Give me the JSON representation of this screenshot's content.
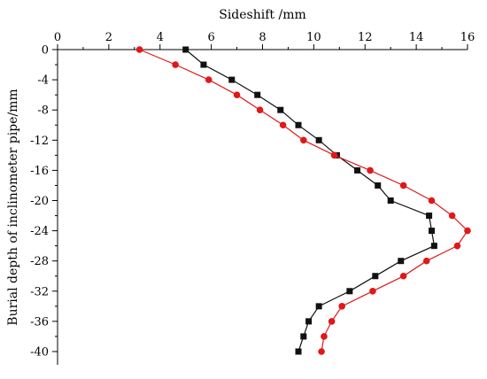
{
  "chart_data": {
    "type": "line",
    "xlabel": "Sideshift /mm",
    "ylabel": "Burial depth of inclinometer pipe/mm",
    "xlim": [
      0,
      16
    ],
    "ylim": [
      -41,
      0
    ],
    "x_axis_position": "top",
    "xticks": [
      0,
      2,
      4,
      6,
      8,
      10,
      12,
      14,
      16
    ],
    "yticks": [
      0,
      -4,
      -8,
      -12,
      -16,
      -20,
      -24,
      -28,
      -32,
      -36,
      -40
    ],
    "grid": false,
    "legend": "none",
    "series": [
      {
        "color": "#111111",
        "marker": "square",
        "points": [
          {
            "x": 5.0,
            "y": 0
          },
          {
            "x": 5.7,
            "y": -2
          },
          {
            "x": 6.8,
            "y": -4
          },
          {
            "x": 7.8,
            "y": -6
          },
          {
            "x": 8.7,
            "y": -8
          },
          {
            "x": 9.4,
            "y": -10
          },
          {
            "x": 10.2,
            "y": -12
          },
          {
            "x": 10.9,
            "y": -14
          },
          {
            "x": 11.7,
            "y": -16
          },
          {
            "x": 12.5,
            "y": -18
          },
          {
            "x": 13.0,
            "y": -20
          },
          {
            "x": 14.5,
            "y": -22
          },
          {
            "x": 14.6,
            "y": -24
          },
          {
            "x": 14.7,
            "y": -26
          },
          {
            "x": 13.4,
            "y": -28
          },
          {
            "x": 12.4,
            "y": -30
          },
          {
            "x": 11.4,
            "y": -32
          },
          {
            "x": 10.2,
            "y": -34
          },
          {
            "x": 9.8,
            "y": -36
          },
          {
            "x": 9.6,
            "y": -38
          },
          {
            "x": 9.4,
            "y": -40
          }
        ]
      },
      {
        "color": "#e01818",
        "marker": "circle",
        "points": [
          {
            "x": 3.2,
            "y": 0
          },
          {
            "x": 4.6,
            "y": -2
          },
          {
            "x": 5.9,
            "y": -4
          },
          {
            "x": 7.0,
            "y": -6
          },
          {
            "x": 7.9,
            "y": -8
          },
          {
            "x": 8.8,
            "y": -10
          },
          {
            "x": 9.6,
            "y": -12
          },
          {
            "x": 10.8,
            "y": -14
          },
          {
            "x": 12.2,
            "y": -16
          },
          {
            "x": 13.5,
            "y": -18
          },
          {
            "x": 14.6,
            "y": -20
          },
          {
            "x": 15.4,
            "y": -22
          },
          {
            "x": 16.0,
            "y": -24
          },
          {
            "x": 15.6,
            "y": -26
          },
          {
            "x": 14.4,
            "y": -28
          },
          {
            "x": 13.5,
            "y": -30
          },
          {
            "x": 12.3,
            "y": -32
          },
          {
            "x": 11.1,
            "y": -34
          },
          {
            "x": 10.7,
            "y": -36
          },
          {
            "x": 10.4,
            "y": -38
          },
          {
            "x": 10.3,
            "y": -40
          }
        ]
      }
    ]
  }
}
